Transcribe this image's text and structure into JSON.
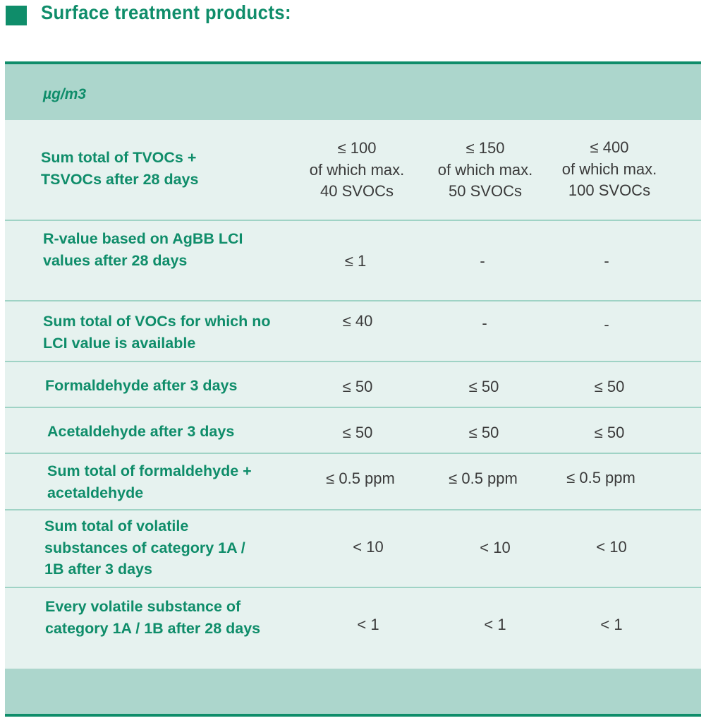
{
  "heading": {
    "title": "Surface treatment products:"
  },
  "table": {
    "unit": "µg/m3",
    "rows": [
      {
        "label": "Sum total of TVOCs + TSVOCs after 28 days",
        "values": [
          "≤ 100\nof which max.\n40 SVOCs",
          "≤ 150\nof which max.\n50 SVOCs",
          "≤ 400\nof which max.\n100 SVOCs"
        ]
      },
      {
        "label": "R-value based on AgBB LCI values after 28 days",
        "values": [
          "≤ 1",
          "-",
          "-"
        ]
      },
      {
        "label": "Sum total of VOCs for which no LCI value is available",
        "values": [
          "≤ 40",
          "-",
          "-"
        ]
      },
      {
        "label": "Formaldehyde after 3 days",
        "values": [
          "≤ 50",
          "≤ 50",
          "≤ 50"
        ]
      },
      {
        "label": "Acetaldehyde after 3 days",
        "values": [
          "≤ 50",
          "≤ 50",
          "≤ 50"
        ]
      },
      {
        "label": "Sum total of formaldehyde + acetaldehyde",
        "values": [
          "≤ 0.5 ppm",
          "≤ 0.5 ppm",
          "≤ 0.5 ppm"
        ]
      },
      {
        "label": "Sum total of volatile substances of category 1A / 1B after 3 days",
        "values": [
          "< 10",
          "< 10",
          "< 10"
        ]
      },
      {
        "label": "Every volatile substance of category 1A / 1B after 28 days",
        "values": [
          "< 1",
          "< 1",
          "< 1"
        ]
      }
    ]
  },
  "colors": {
    "accent": "#0f8d6a",
    "band": "#acd6cc",
    "body_bg": "#e6f2ef",
    "row_rule": "#9fd3c5",
    "value_text": "#3a3a3a"
  }
}
